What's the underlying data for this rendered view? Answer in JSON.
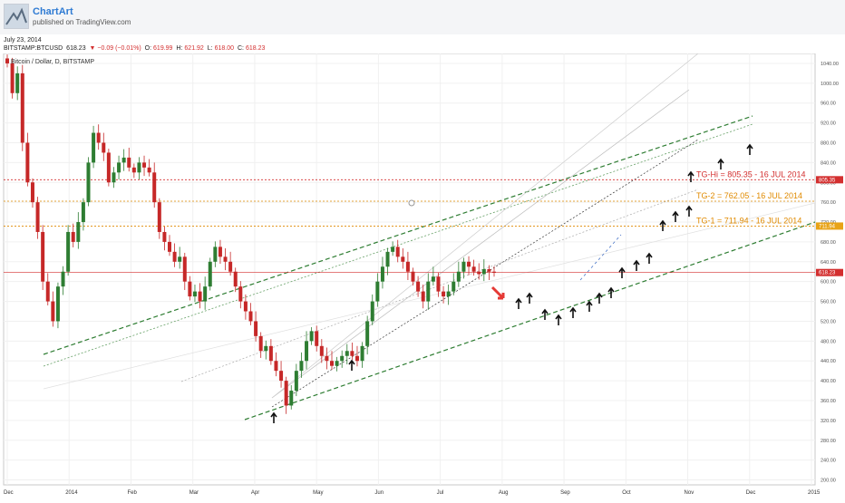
{
  "header": {
    "author": "ChartArt",
    "published": "published on TradingView.com",
    "date": "July 23, 2014"
  },
  "ticker": {
    "symbol": "BITSTAMP:BTCUSD",
    "last": "618.23",
    "change": "▼ −0.09 (−0.01%)",
    "o_label": "O:",
    "o": "619.99",
    "h_label": "H:",
    "h": "621.92",
    "l_label": "L:",
    "l": "618.00",
    "c_label": "C:",
    "c": "618.23"
  },
  "chart_data": {
    "type": "candlestick",
    "title": "Bitcoin / Dollar, D, BITSTAMP",
    "x_ticks": [
      "Dec",
      "2014",
      "Feb",
      "Mar",
      "Apr",
      "May",
      "Jun",
      "Jul",
      "Aug",
      "Sep",
      "Oct",
      "Nov",
      "Dec",
      "2015"
    ],
    "y_ticks": [
      200,
      240,
      280,
      320,
      360,
      400,
      440,
      480,
      520,
      560,
      600,
      640,
      680,
      720,
      760,
      800,
      840,
      880,
      920,
      960,
      1000,
      1040
    ],
    "ylim": [
      190,
      1060
    ],
    "price_marks": [
      {
        "value": 805.35,
        "label": "805.35",
        "color": "#d32f2f"
      },
      {
        "value": 711.94,
        "label": "711.94",
        "color": "#e8a317"
      },
      {
        "value": 618.23,
        "label": "618.23",
        "color": "#d32f2f"
      }
    ],
    "levels": [
      {
        "value": 805.35,
        "color": "#d32f2f",
        "text": "TG-Hi = 805.35 - 16 JUL 2014"
      },
      {
        "value": 762.05,
        "color": "#e08a00",
        "text": "TG-2 = 762.05 - 16 JUL 2014"
      },
      {
        "value": 711.94,
        "color": "#e08a00",
        "text": "TG-1 = 711.94 - 16 JUL 2014"
      }
    ],
    "hline": {
      "value": 618.23,
      "color": "#d32f2f"
    },
    "closes": [
      1040,
      980,
      1020,
      880,
      800,
      760,
      700,
      600,
      560,
      520,
      590,
      620,
      700,
      680,
      720,
      760,
      840,
      900,
      880,
      860,
      800,
      820,
      840,
      850,
      830,
      820,
      840,
      830,
      820,
      760,
      700,
      680,
      660,
      640,
      650,
      600,
      570,
      580,
      560,
      590,
      640,
      670,
      650,
      640,
      620,
      590,
      560,
      540,
      520,
      490,
      460,
      470,
      440,
      420,
      400,
      350,
      380,
      420,
      440,
      480,
      500,
      470,
      450,
      440,
      430,
      440,
      450,
      460,
      450,
      440,
      470,
      520,
      560,
      600,
      630,
      660,
      670,
      650,
      640,
      620,
      600,
      580,
      560,
      600,
      610,
      580,
      570,
      580,
      600,
      620,
      640,
      630,
      620,
      615,
      625,
      620,
      618
    ]
  }
}
